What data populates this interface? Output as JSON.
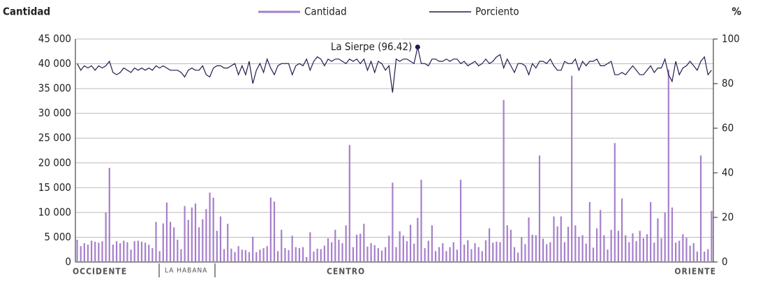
{
  "chart_data": {
    "type": "bar_line",
    "y_label": "Cantidad",
    "y2_label": "%",
    "series": [
      {
        "name": "Cantidad",
        "type": "bar",
        "color": "#a67fcb",
        "values": [
          4500,
          3200,
          3800,
          3500,
          4300,
          4100,
          3900,
          4200,
          10000,
          19000,
          3500,
          4200,
          3800,
          4300,
          4000,
          2500,
          4200,
          4300,
          4100,
          3900,
          3500,
          2800,
          8100,
          2200,
          7800,
          12000,
          8100,
          7000,
          4500,
          2600,
          11300,
          8500,
          11000,
          11800,
          7000,
          8600,
          10700,
          14000,
          13000,
          6300,
          9200,
          2600,
          7700,
          2700,
          2000,
          3200,
          2500,
          2400,
          2000,
          5100,
          2000,
          2500,
          2800,
          3200,
          13000,
          12200,
          2200,
          6500,
          2800,
          2400,
          5300,
          3000,
          2800,
          3000,
          1000,
          6000,
          2100,
          2700,
          2600,
          3300,
          4800,
          4000,
          6500,
          4500,
          3800,
          7400,
          23600,
          3000,
          5500,
          5700,
          7700,
          3100,
          3800,
          3400,
          2800,
          2300,
          3000,
          5300,
          16000,
          3000,
          6200,
          5300,
          4200,
          7500,
          3700,
          8900,
          16600,
          2800,
          4300,
          7400,
          2200,
          3000,
          3800,
          2200,
          3000,
          4000,
          2500,
          16600,
          3500,
          4400,
          2600,
          3800,
          3000,
          2200,
          4400,
          6800,
          3900,
          4100,
          4000,
          32700,
          7400,
          6500,
          3000,
          1900,
          5000,
          3600,
          9000,
          5500,
          5400,
          21500,
          4700,
          3600,
          4000,
          9200,
          7200,
          9200,
          4000,
          7100,
          37600,
          7400,
          5100,
          5400,
          3700,
          12100,
          2900,
          6800,
          10500,
          5400,
          2500,
          6500,
          24000,
          6300,
          12800,
          5400,
          4000,
          5800,
          4200,
          6300,
          4800,
          5600,
          12100,
          3900,
          8800,
          4800,
          10000,
          38800,
          11000,
          3900,
          4300,
          5600,
          4900,
          3300,
          3800,
          2100,
          21500,
          2100,
          2600,
          10300
        ]
      },
      {
        "name": "Porciento",
        "type": "line",
        "axis": "y2",
        "color": "#1f1b4f",
        "values": [
          89,
          86,
          88,
          87,
          88,
          86,
          88,
          87,
          88,
          90,
          85,
          84,
          85,
          87,
          86,
          85,
          87,
          86,
          87,
          86,
          87,
          86,
          88,
          87,
          88,
          87,
          86,
          86,
          86,
          85,
          83,
          86,
          87,
          86,
          86,
          88,
          84,
          83,
          87,
          88,
          88,
          87,
          87,
          88,
          89,
          84,
          88,
          84,
          90,
          80,
          86,
          89,
          85,
          91,
          87,
          84,
          88,
          89,
          89,
          89,
          84,
          88,
          89,
          88,
          91,
          86,
          90,
          92,
          91,
          88,
          91,
          90,
          91,
          91,
          90,
          89,
          91,
          90,
          91,
          89,
          91,
          86,
          90,
          85,
          90,
          89,
          86,
          88,
          76,
          91,
          90,
          91,
          91,
          90,
          89,
          96.42,
          89,
          89,
          88,
          91,
          91,
          90,
          90,
          91,
          90,
          91,
          91,
          89,
          90,
          88,
          89,
          90,
          88,
          89,
          91,
          89,
          90,
          92,
          93,
          87,
          91,
          88,
          85,
          89,
          89,
          88,
          84,
          89,
          87,
          90,
          90,
          89,
          91,
          88,
          86,
          86,
          90,
          89,
          89,
          91,
          86,
          90,
          88,
          90,
          90,
          91,
          88,
          88,
          89,
          90,
          84,
          84,
          85,
          84,
          86,
          88,
          86,
          84,
          84,
          86,
          88,
          85,
          87,
          87,
          91,
          84,
          81,
          90,
          84,
          87,
          88,
          90,
          88,
          86,
          90,
          92,
          84,
          86
        ]
      }
    ],
    "ylim": [
      0,
      45000
    ],
    "yticks": [
      0,
      {
        "value": 5000,
        "label": "5 000"
      },
      {
        "value": 10000,
        "label": "10 000"
      },
      {
        "value": 15000,
        "label": "15 000"
      },
      {
        "value": 20000,
        "label": "20 000"
      },
      {
        "value": 25000,
        "label": "25 000"
      },
      {
        "value": 30000,
        "label": "30 000"
      },
      {
        "value": 35000,
        "label": "35 000"
      },
      {
        "value": 40000,
        "label": "40 000"
      },
      {
        "value": 45000,
        "label": "45 000"
      }
    ],
    "y2lim": [
      0,
      100
    ],
    "y2ticks": [
      0,
      20,
      40,
      60,
      80,
      100
    ],
    "grid": true,
    "annotation": "La Sierpe (96.42)",
    "regions": [
      "OCCIDENTE",
      "LA HABANA",
      "CENTRO",
      "ORIENTE"
    ]
  }
}
